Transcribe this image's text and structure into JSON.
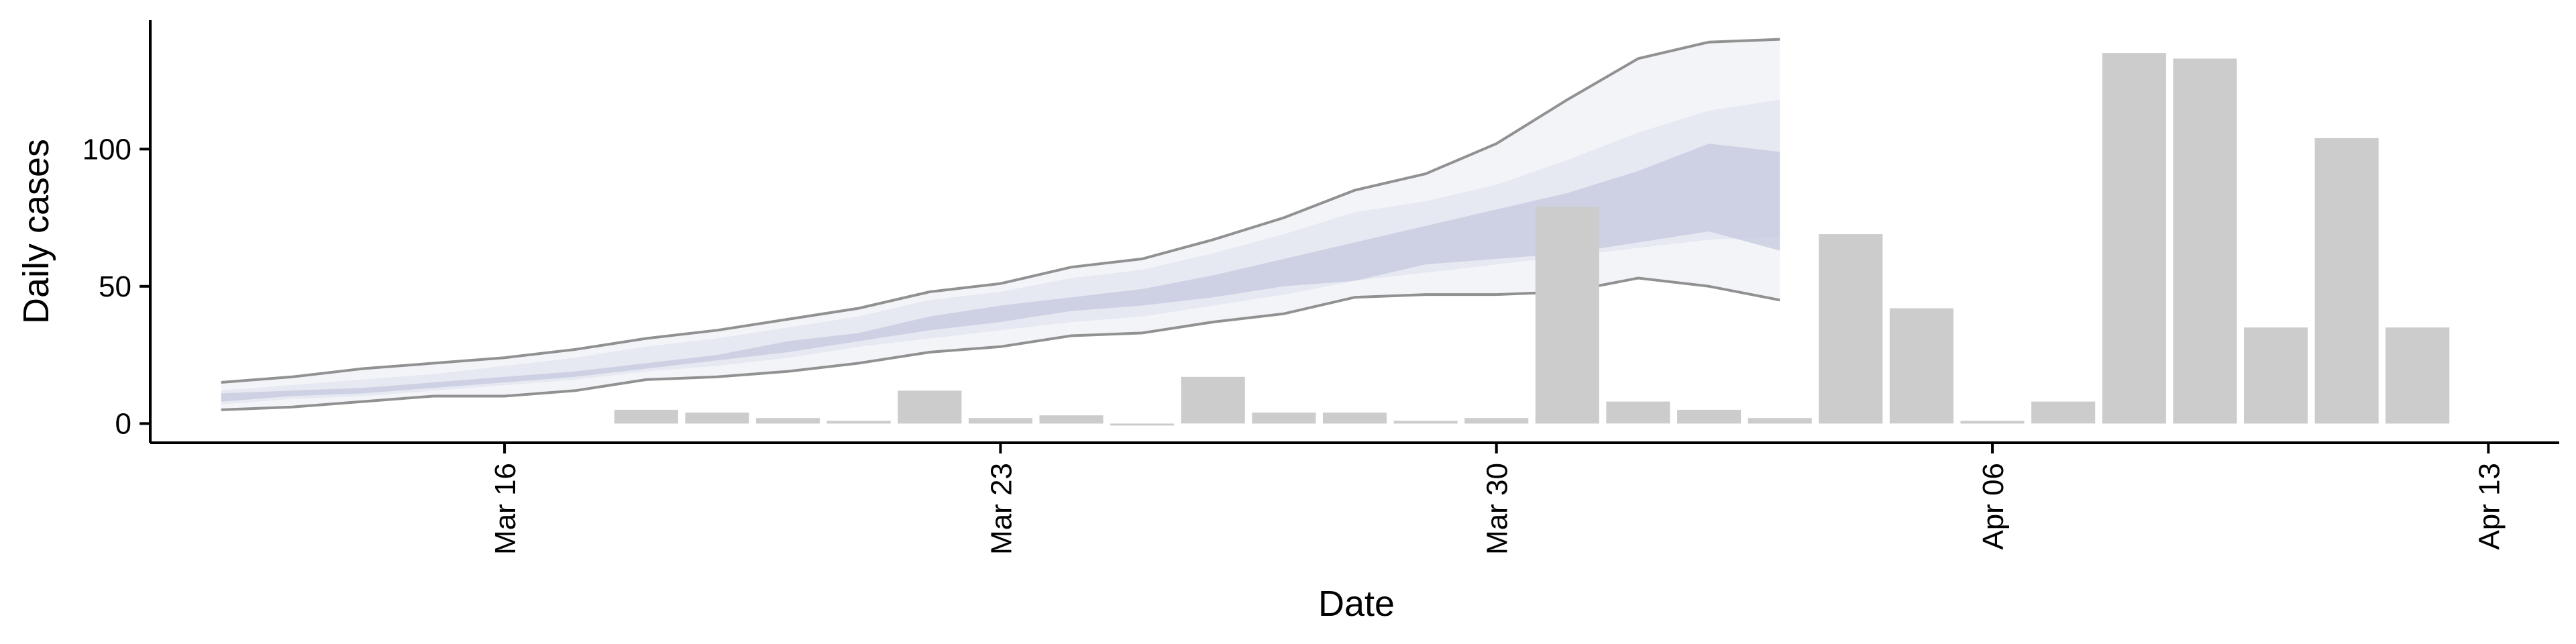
{
  "chart_data": {
    "type": "bar",
    "xlabel": "Date",
    "ylabel": "Daily cases",
    "x_ticks": [
      {
        "date": "2020-03-16",
        "label": "Mar 16"
      },
      {
        "date": "2020-03-23",
        "label": "Mar 23"
      },
      {
        "date": "2020-03-30",
        "label": "Mar 30"
      },
      {
        "date": "2020-04-06",
        "label": "Apr 06"
      },
      {
        "date": "2020-04-13",
        "label": "Apr 13"
      }
    ],
    "y_ticks": [
      0,
      50,
      100
    ],
    "xlim": [
      "2020-03-11",
      "2020-04-14"
    ],
    "ylim": [
      -7,
      147
    ],
    "grid": false,
    "colors": {
      "bars": "#cccccc",
      "band_outer": "#eef0f6",
      "band_mid": "#dcdfec",
      "band_inner": "#c5cade",
      "band_lines": "#777777"
    },
    "series": [
      {
        "kind": "bar",
        "x": [
          "2020-03-18",
          "2020-03-19",
          "2020-03-20",
          "2020-03-21",
          "2020-03-22",
          "2020-03-23",
          "2020-03-24",
          "2020-03-25",
          "2020-03-26",
          "2020-03-27",
          "2020-03-28",
          "2020-03-29",
          "2020-03-30",
          "2020-03-31",
          "2020-04-01",
          "2020-04-02",
          "2020-04-03",
          "2020-04-04",
          "2020-04-05",
          "2020-04-06",
          "2020-04-07",
          "2020-04-08",
          "2020-04-09",
          "2020-04-10",
          "2020-04-11",
          "2020-04-12"
        ],
        "y": [
          5,
          4,
          2,
          1,
          12,
          2,
          3,
          0,
          17,
          4,
          4,
          1,
          2,
          79,
          8,
          5,
          2,
          69,
          42,
          1,
          8,
          135,
          133,
          35,
          104,
          35
        ]
      },
      {
        "kind": "band",
        "x": [
          "2020-03-12",
          "2020-03-13",
          "2020-03-14",
          "2020-03-15",
          "2020-03-16",
          "2020-03-17",
          "2020-03-18",
          "2020-03-19",
          "2020-03-20",
          "2020-03-21",
          "2020-03-22",
          "2020-03-23",
          "2020-03-24",
          "2020-03-25",
          "2020-03-26",
          "2020-03-27",
          "2020-03-28",
          "2020-03-29",
          "2020-03-30",
          "2020-03-31",
          "2020-04-01",
          "2020-04-02",
          "2020-04-03"
        ],
        "lower": [
          5,
          6,
          8,
          10,
          10,
          12,
          16,
          17,
          19,
          22,
          26,
          28,
          32,
          33,
          37,
          40,
          46,
          47,
          47,
          48,
          53,
          50,
          45
        ],
        "upper": [
          15,
          17,
          20,
          22,
          24,
          27,
          31,
          34,
          38,
          42,
          48,
          51,
          57,
          60,
          67,
          75,
          85,
          91,
          102,
          118,
          133,
          139,
          140
        ],
        "mid_lower": [
          7,
          9,
          10,
          12,
          14,
          16,
          19,
          21,
          24,
          28,
          31,
          34,
          37,
          39,
          43,
          47,
          52,
          55,
          58,
          61,
          64,
          67,
          68
        ],
        "mid_upper": [
          12,
          14,
          16,
          18,
          21,
          24,
          28,
          31,
          35,
          39,
          45,
          48,
          53,
          56,
          62,
          69,
          77,
          81,
          87,
          96,
          106,
          114,
          118
        ],
        "inner_lower": [
          8,
          10,
          11,
          13,
          15,
          17,
          20,
          23,
          26,
          30,
          34,
          37,
          41,
          43,
          46,
          50,
          52,
          58,
          60,
          62,
          66,
          70,
          63
        ],
        "inner_upper": [
          11,
          12,
          13,
          15,
          17,
          19,
          22,
          25,
          30,
          33,
          39,
          43,
          46,
          49,
          54,
          60,
          66,
          72,
          78,
          84,
          92,
          102,
          99
        ]
      }
    ]
  }
}
